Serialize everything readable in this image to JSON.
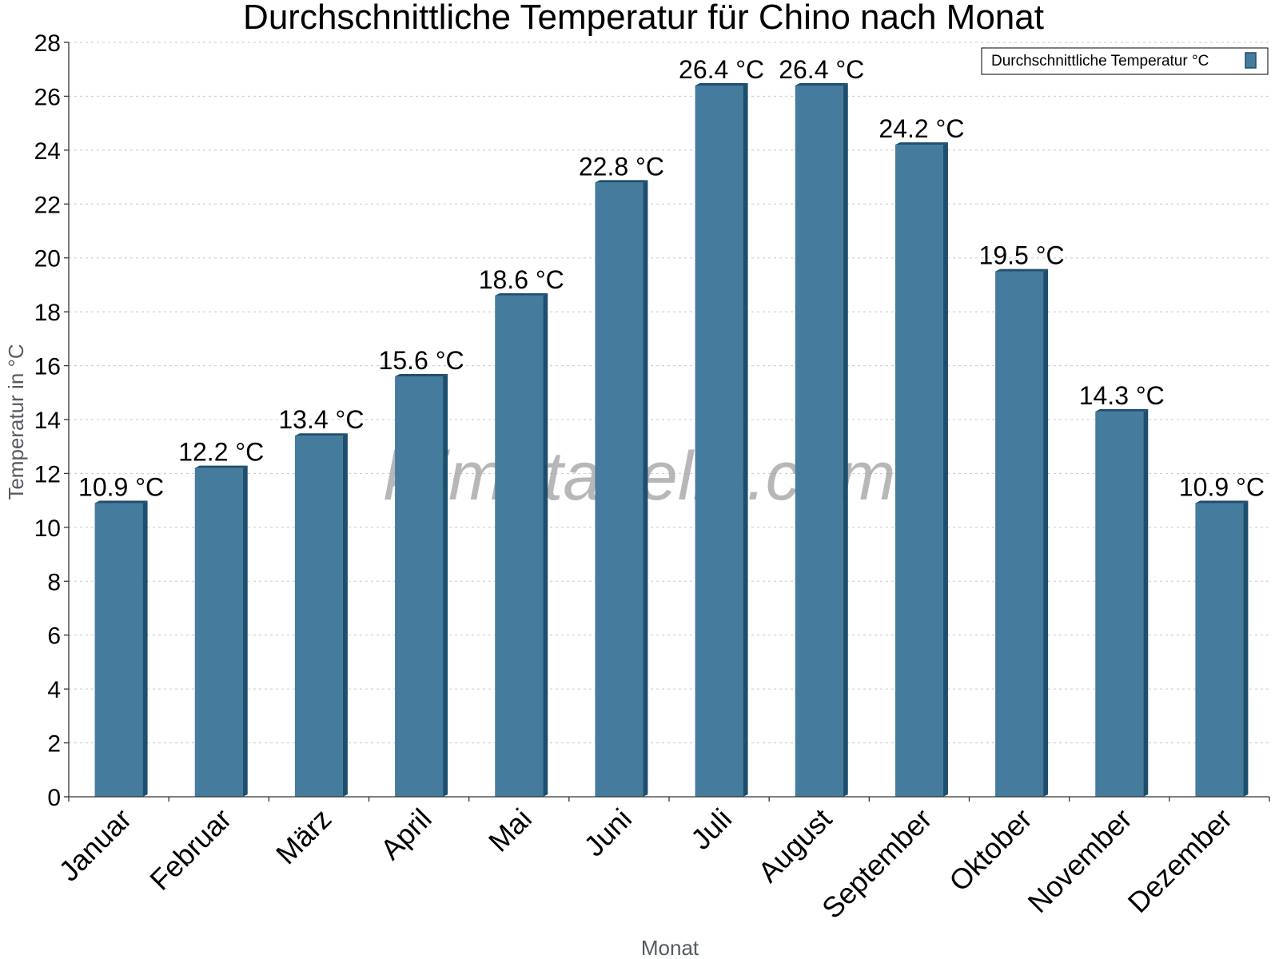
{
  "chart_data": {
    "type": "bar",
    "title": "Durchschnittliche Temperatur für Chino nach Monat",
    "xlabel": "Monat",
    "ylabel": "Temperatur in °C",
    "categories": [
      "Januar",
      "Februar",
      "März",
      "April",
      "Mai",
      "Juni",
      "Juli",
      "August",
      "September",
      "Oktober",
      "November",
      "Dezember"
    ],
    "series": [
      {
        "name": "Durchschnittliche Temperatur °C",
        "values": [
          10.9,
          12.2,
          13.4,
          15.6,
          18.6,
          22.8,
          26.4,
          26.4,
          24.2,
          19.5,
          14.3,
          10.9
        ],
        "data_labels": [
          "10.9 °C",
          "12.2 °C",
          "13.4 °C",
          "15.6 °C",
          "18.6 °C",
          "22.8 °C",
          "26.4 °C",
          "26.4 °C",
          "24.2 °C",
          "19.5 °C",
          "14.3 °C",
          "10.9 °C"
        ]
      }
    ],
    "ylim": [
      0,
      28
    ],
    "yticks": [
      "0",
      "2",
      "4",
      "6",
      "8",
      "10",
      "12",
      "14",
      "16",
      "18",
      "20",
      "22",
      "24",
      "26",
      "28"
    ],
    "grid": true,
    "legend_position": "top-right",
    "colors": {
      "bar": "#457b9d",
      "bar_side": "#1d4e6e",
      "bar_top": "#1d4e6e"
    }
  },
  "watermark": "klimatabelle.com"
}
